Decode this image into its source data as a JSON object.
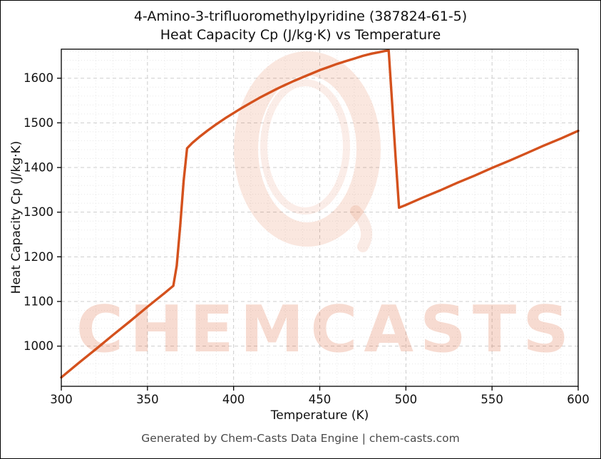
{
  "chart": {
    "title_line1": "4-Amino-3-trifluoromethylpyridine (387824-61-5)",
    "title_line2": "Heat Capacity Cp (J/kg·K) vs Temperature"
  },
  "footer": {
    "text": "Generated by Chem-Casts Data Engine | chem-casts.com"
  },
  "watermark": {
    "text": "CHEMCASTS",
    "logo": "brush-ring-O-logo",
    "color": "#d9521d",
    "text_opacity": 0.2,
    "ring_opacity": 0.14
  },
  "chart_data": {
    "type": "line",
    "title": "4-Amino-3-trifluoromethylpyridine (387824-61-5)\nHeat Capacity Cp (J/kg·K) vs Temperature",
    "xlabel": "Temperature (K)",
    "ylabel": "Heat Capacity Cp (J/kg·K)",
    "xlim": [
      300,
      600
    ],
    "ylim": [
      910,
      1665
    ],
    "x_ticks": [
      300,
      350,
      400,
      450,
      500,
      550,
      600
    ],
    "y_ticks": [
      1000,
      1100,
      1200,
      1300,
      1400,
      1500,
      1600
    ],
    "grid": "major dashed + minor dotted, light gray",
    "legend": "none",
    "line_color": "#d4511d",
    "series": [
      {
        "name": "Heat Capacity Cp",
        "x": [
          300,
          310,
          320,
          330,
          340,
          350,
          360,
          365,
          367,
          369,
          371,
          373,
          376,
          380,
          385,
          390,
          395,
          400,
          405,
          410,
          415,
          420,
          425,
          430,
          435,
          440,
          445,
          450,
          455,
          460,
          465,
          470,
          475,
          480,
          484,
          488,
          490,
          492,
          494,
          496,
          500,
          510,
          520,
          530,
          540,
          550,
          560,
          570,
          580,
          590,
          600
        ],
        "y": [
          930,
          962,
          993,
          1025,
          1056,
          1088,
          1119,
          1135,
          1180,
          1270,
          1370,
          1443,
          1455,
          1468,
          1483,
          1497,
          1510,
          1522,
          1534,
          1545,
          1556,
          1566,
          1576,
          1585,
          1594,
          1602,
          1610,
          1618,
          1625,
          1632,
          1638,
          1644,
          1650,
          1655,
          1658,
          1661,
          1662,
          1545,
          1425,
          1310,
          1316,
          1333,
          1349,
          1366,
          1382,
          1399,
          1415,
          1432,
          1449,
          1465,
          1482
        ]
      }
    ],
    "annotations": {
      "step_up_near_x": 370,
      "peak_near": [
        489,
        1662
      ],
      "drop_to_near": [
        496,
        1310
      ]
    }
  }
}
